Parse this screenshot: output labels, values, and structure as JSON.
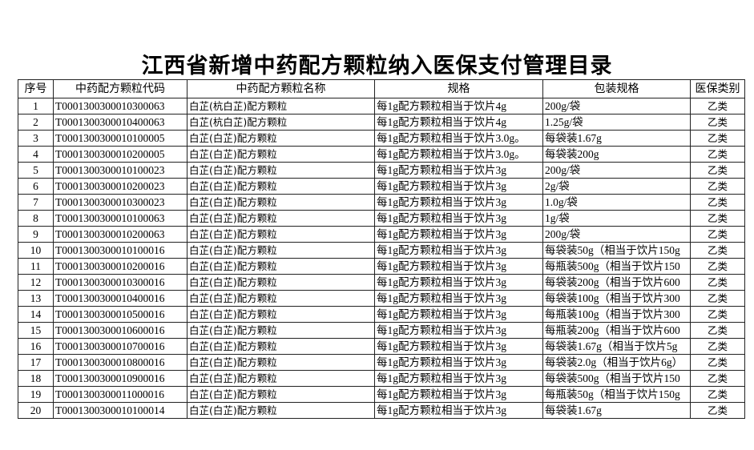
{
  "title": "江西省新增中药配方颗粒纳入医保支付管理目录",
  "table": {
    "headers": [
      "序号",
      "中药配方颗粒代码",
      "中药配方颗粒名称",
      "规格",
      "包装规格",
      "医保类别"
    ],
    "rows": [
      [
        "1",
        "T0001300300010300063",
        "白芷(杭白芷)配方颗粒",
        "每1g配方颗粒相当于饮片4g",
        "200g/袋",
        "乙类"
      ],
      [
        "2",
        "T0001300300010400063",
        "白芷(杭白芷)配方颗粒",
        "每1g配方颗粒相当于饮片4g",
        "1.25g/袋",
        "乙类"
      ],
      [
        "3",
        "T0001300300010100005",
        "白芷(白芷)配方颗粒",
        "每1g配方颗粒相当于饮片3.0g。",
        "每袋装1.67g",
        "乙类"
      ],
      [
        "4",
        "T0001300300010200005",
        "白芷(白芷)配方颗粒",
        "每1g配方颗粒相当于饮片3.0g。",
        "每袋装200g",
        "乙类"
      ],
      [
        "5",
        "T0001300300010100023",
        "白芷(白芷)配方颗粒",
        "每1g配方颗粒相当于饮片3g",
        "200g/袋",
        "乙类"
      ],
      [
        "6",
        "T0001300300010200023",
        "白芷(白芷)配方颗粒",
        "每1g配方颗粒相当于饮片3g",
        "2g/袋",
        "乙类"
      ],
      [
        "7",
        "T0001300300010300023",
        "白芷(白芷)配方颗粒",
        "每1g配方颗粒相当于饮片3g",
        "1.0g/袋",
        "乙类"
      ],
      [
        "8",
        "T0001300300010100063",
        "白芷(白芷)配方颗粒",
        "每1g配方颗粒相当于饮片3g",
        "1g/袋",
        "乙类"
      ],
      [
        "9",
        "T0001300300010200063",
        "白芷(白芷)配方颗粒",
        "每1g配方颗粒相当于饮片3g",
        "200g/袋",
        "乙类"
      ],
      [
        "10",
        "T0001300300010100016",
        "白芷(白芷)配方颗粒",
        "每1g配方颗粒相当于饮片3g",
        "每袋装50g（相当于饮片150g",
        "乙类"
      ],
      [
        "11",
        "T0001300300010200016",
        "白芷(白芷)配方颗粒",
        "每1g配方颗粒相当于饮片3g",
        "每瓶装500g（相当于饮片150",
        "乙类"
      ],
      [
        "12",
        "T0001300300010300016",
        "白芷(白芷)配方颗粒",
        "每1g配方颗粒相当于饮片3g",
        "每袋装200g（相当于饮片600",
        "乙类"
      ],
      [
        "13",
        "T0001300300010400016",
        "白芷(白芷)配方颗粒",
        "每1g配方颗粒相当于饮片3g",
        "每袋装100g（相当于饮片300",
        "乙类"
      ],
      [
        "14",
        "T0001300300010500016",
        "白芷(白芷)配方颗粒",
        "每1g配方颗粒相当于饮片3g",
        "每瓶装100g（相当于饮片300",
        "乙类"
      ],
      [
        "15",
        "T0001300300010600016",
        "白芷(白芷)配方颗粒",
        "每1g配方颗粒相当于饮片3g",
        "每瓶装200g（相当于饮片600",
        "乙类"
      ],
      [
        "16",
        "T0001300300010700016",
        "白芷(白芷)配方颗粒",
        "每1g配方颗粒相当于饮片3g",
        "每袋装1.67g（相当于饮片5g",
        "乙类"
      ],
      [
        "17",
        "T0001300300010800016",
        "白芷(白芷)配方颗粒",
        "每1g配方颗粒相当于饮片3g",
        "每袋装2.0g（相当于饮片6g）",
        "乙类"
      ],
      [
        "18",
        "T0001300300010900016",
        "白芷(白芷)配方颗粒",
        "每1g配方颗粒相当于饮片3g",
        "每袋装500g（相当于饮片150",
        "乙类"
      ],
      [
        "19",
        "T0001300300011000016",
        "白芷(白芷)配方颗粒",
        "每1g配方颗粒相当于饮片3g",
        "每瓶装50g（相当于饮片150g",
        "乙类"
      ],
      [
        "20",
        "T0001300300010100014",
        "白芷(白芷)配方颗粒",
        "每1g配方颗粒相当于饮片3g",
        "每袋装1.67g",
        "乙类"
      ]
    ]
  }
}
